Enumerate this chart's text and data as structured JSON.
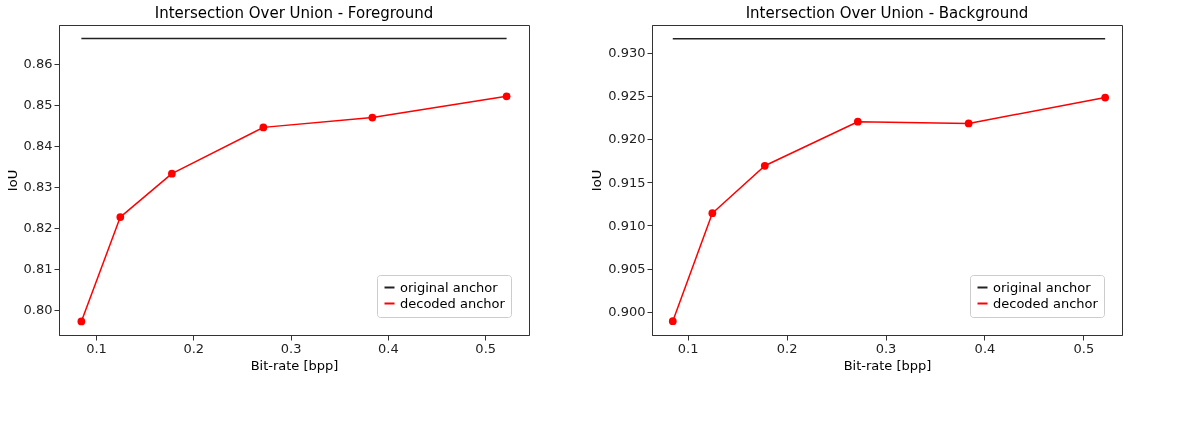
{
  "chart_data": [
    {
      "type": "line",
      "title": "Intersection Over Union - Foreground",
      "xlabel": "Bit-rate [bpp]",
      "ylabel": "IoU",
      "xlim": [
        0.062,
        0.545
      ],
      "xticks": [
        0.1,
        0.2,
        0.3,
        0.4,
        0.5
      ],
      "ylim": [
        0.7938,
        0.8695
      ],
      "yticks": [
        {
          "value": 0.8,
          "label": "0.80"
        },
        0.81,
        0.82,
        0.83,
        0.84,
        0.85,
        0.86
      ],
      "legend": "bottom right",
      "grid": false,
      "series": [
        {
          "name": "original anchor",
          "color": "#222222",
          "marker": "none",
          "x": [
            0.085,
            0.522
          ],
          "values": [
            0.8662,
            0.8662
          ]
        },
        {
          "name": "decoded anchor",
          "color": "#ff0000",
          "marker": "circle",
          "x": [
            0.085,
            0.125,
            0.178,
            0.272,
            0.384,
            0.522
          ],
          "values": [
            0.7971,
            0.8226,
            0.8332,
            0.8445,
            0.8469,
            0.8521
          ]
        }
      ]
    },
    {
      "type": "line",
      "title": "Intersection Over Union - Background",
      "xlabel": "Bit-rate [bpp]",
      "ylabel": "IoU",
      "xlim": [
        0.064,
        0.539
      ],
      "xticks": [
        0.1,
        0.2,
        0.3,
        0.4,
        0.5
      ],
      "ylim": [
        0.8973,
        0.9332
      ],
      "yticks": [
        {
          "value": 0.9,
          "label": "0.900"
        },
        0.905,
        {
          "value": 0.91,
          "label": "0.910"
        },
        0.915,
        {
          "value": 0.92,
          "label": "0.920"
        },
        0.925,
        {
          "value": 0.93,
          "label": "0.930"
        }
      ],
      "legend": "bottom right",
      "grid": false,
      "series": [
        {
          "name": "original anchor",
          "color": "#222222",
          "marker": "none",
          "x": [
            0.085,
            0.522
          ],
          "values": [
            0.9316,
            0.9316
          ]
        },
        {
          "name": "decoded anchor",
          "color": "#ff0000",
          "marker": "circle",
          "x": [
            0.085,
            0.125,
            0.178,
            0.272,
            0.384,
            0.522
          ],
          "values": [
            0.8989,
            0.9114,
            0.9169,
            0.922,
            0.9218,
            0.9248
          ]
        }
      ]
    }
  ]
}
